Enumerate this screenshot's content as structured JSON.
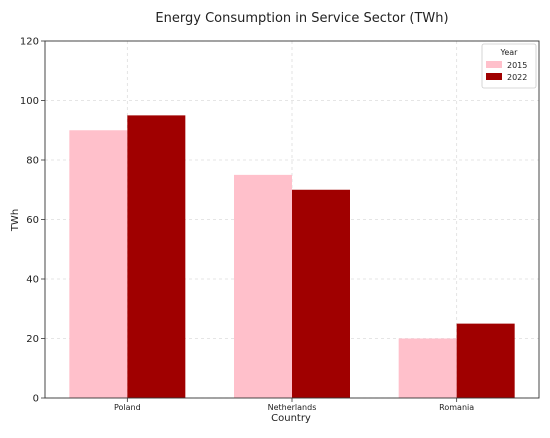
{
  "chart_data": {
    "type": "bar",
    "title": "Energy Consumption in Service Sector (TWh)",
    "xlabel": "Country",
    "ylabel": "TWh",
    "categories": [
      "Poland",
      "Netherlands",
      "Romania"
    ],
    "series": [
      {
        "name": "2015",
        "values": [
          90,
          75,
          20
        ],
        "color": "#ffc0cb"
      },
      {
        "name": "2022",
        "values": [
          95,
          70,
          25
        ],
        "color": "#a00000"
      }
    ],
    "ylim": [
      0,
      120
    ],
    "yticks": [
      0,
      20,
      40,
      60,
      80,
      100,
      120
    ],
    "grid": true,
    "legend": {
      "title": "Year",
      "placement": "top-right"
    }
  }
}
